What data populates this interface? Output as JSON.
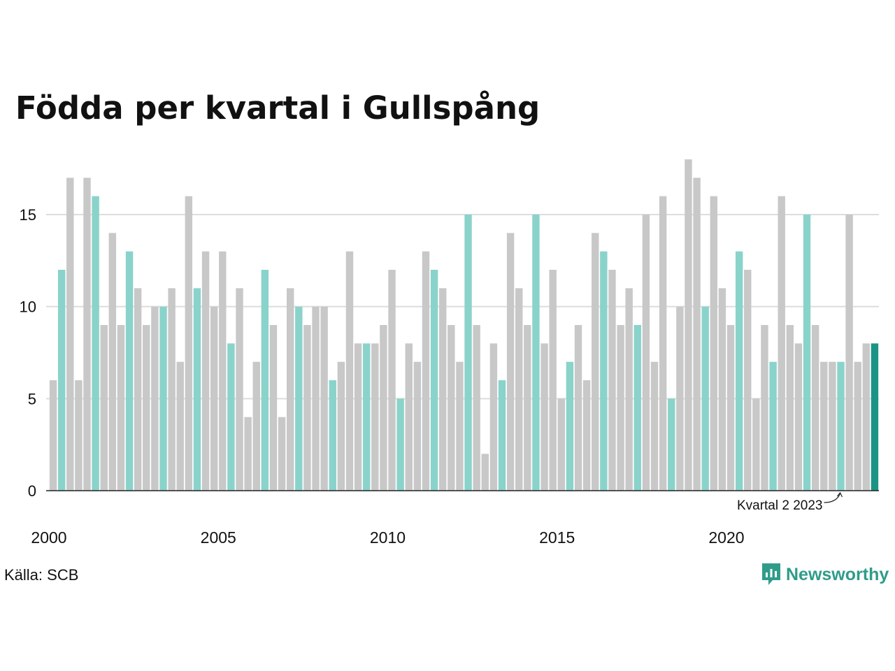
{
  "title": "Födda per kvartal i Gullspång",
  "source": "Källa: SCB",
  "logo": {
    "text": "Newsworthy",
    "icon": "newsworthy-chart-bubble-icon"
  },
  "colors": {
    "gray": "#c8c8c8",
    "q2": "#8ad3cb",
    "latest": "#1b9485",
    "grid": "#dddddd",
    "axis": "#222222",
    "logo": "#2f9c8a"
  },
  "chart_data": {
    "type": "bar",
    "title": "Födda per kvartal i Gullspång",
    "xlabel": "",
    "ylabel": "",
    "start_year": 2000,
    "start_quarter": 1,
    "ylim": [
      0,
      18
    ],
    "yticks": [
      0,
      5,
      10,
      15
    ],
    "xtick_labels": [
      "2000",
      "2005",
      "2010",
      "2015",
      "2020"
    ],
    "grid": true,
    "highlight": "second quarter of each year",
    "values": [
      6,
      12,
      17,
      6,
      17,
      16,
      9,
      14,
      9,
      13,
      11,
      9,
      10,
      10,
      11,
      7,
      16,
      11,
      13,
      10,
      13,
      8,
      11,
      4,
      7,
      12,
      9,
      4,
      11,
      10,
      9,
      10,
      10,
      6,
      7,
      13,
      8,
      8,
      8,
      9,
      12,
      5,
      8,
      7,
      13,
      12,
      11,
      9,
      7,
      15,
      9,
      2,
      8,
      6,
      14,
      11,
      9,
      15,
      8,
      12,
      5,
      7,
      9,
      6,
      14,
      13,
      12,
      9,
      11,
      9,
      15,
      7,
      16,
      5,
      10,
      18,
      17,
      10,
      16,
      11,
      9,
      13,
      12,
      5,
      9,
      7,
      16,
      9,
      8,
      15,
      9,
      7,
      7,
      7,
      15,
      7,
      8,
      8
    ],
    "annotation": {
      "text": "Kvartal 2 2023",
      "year": 2023,
      "quarter": 2
    }
  }
}
